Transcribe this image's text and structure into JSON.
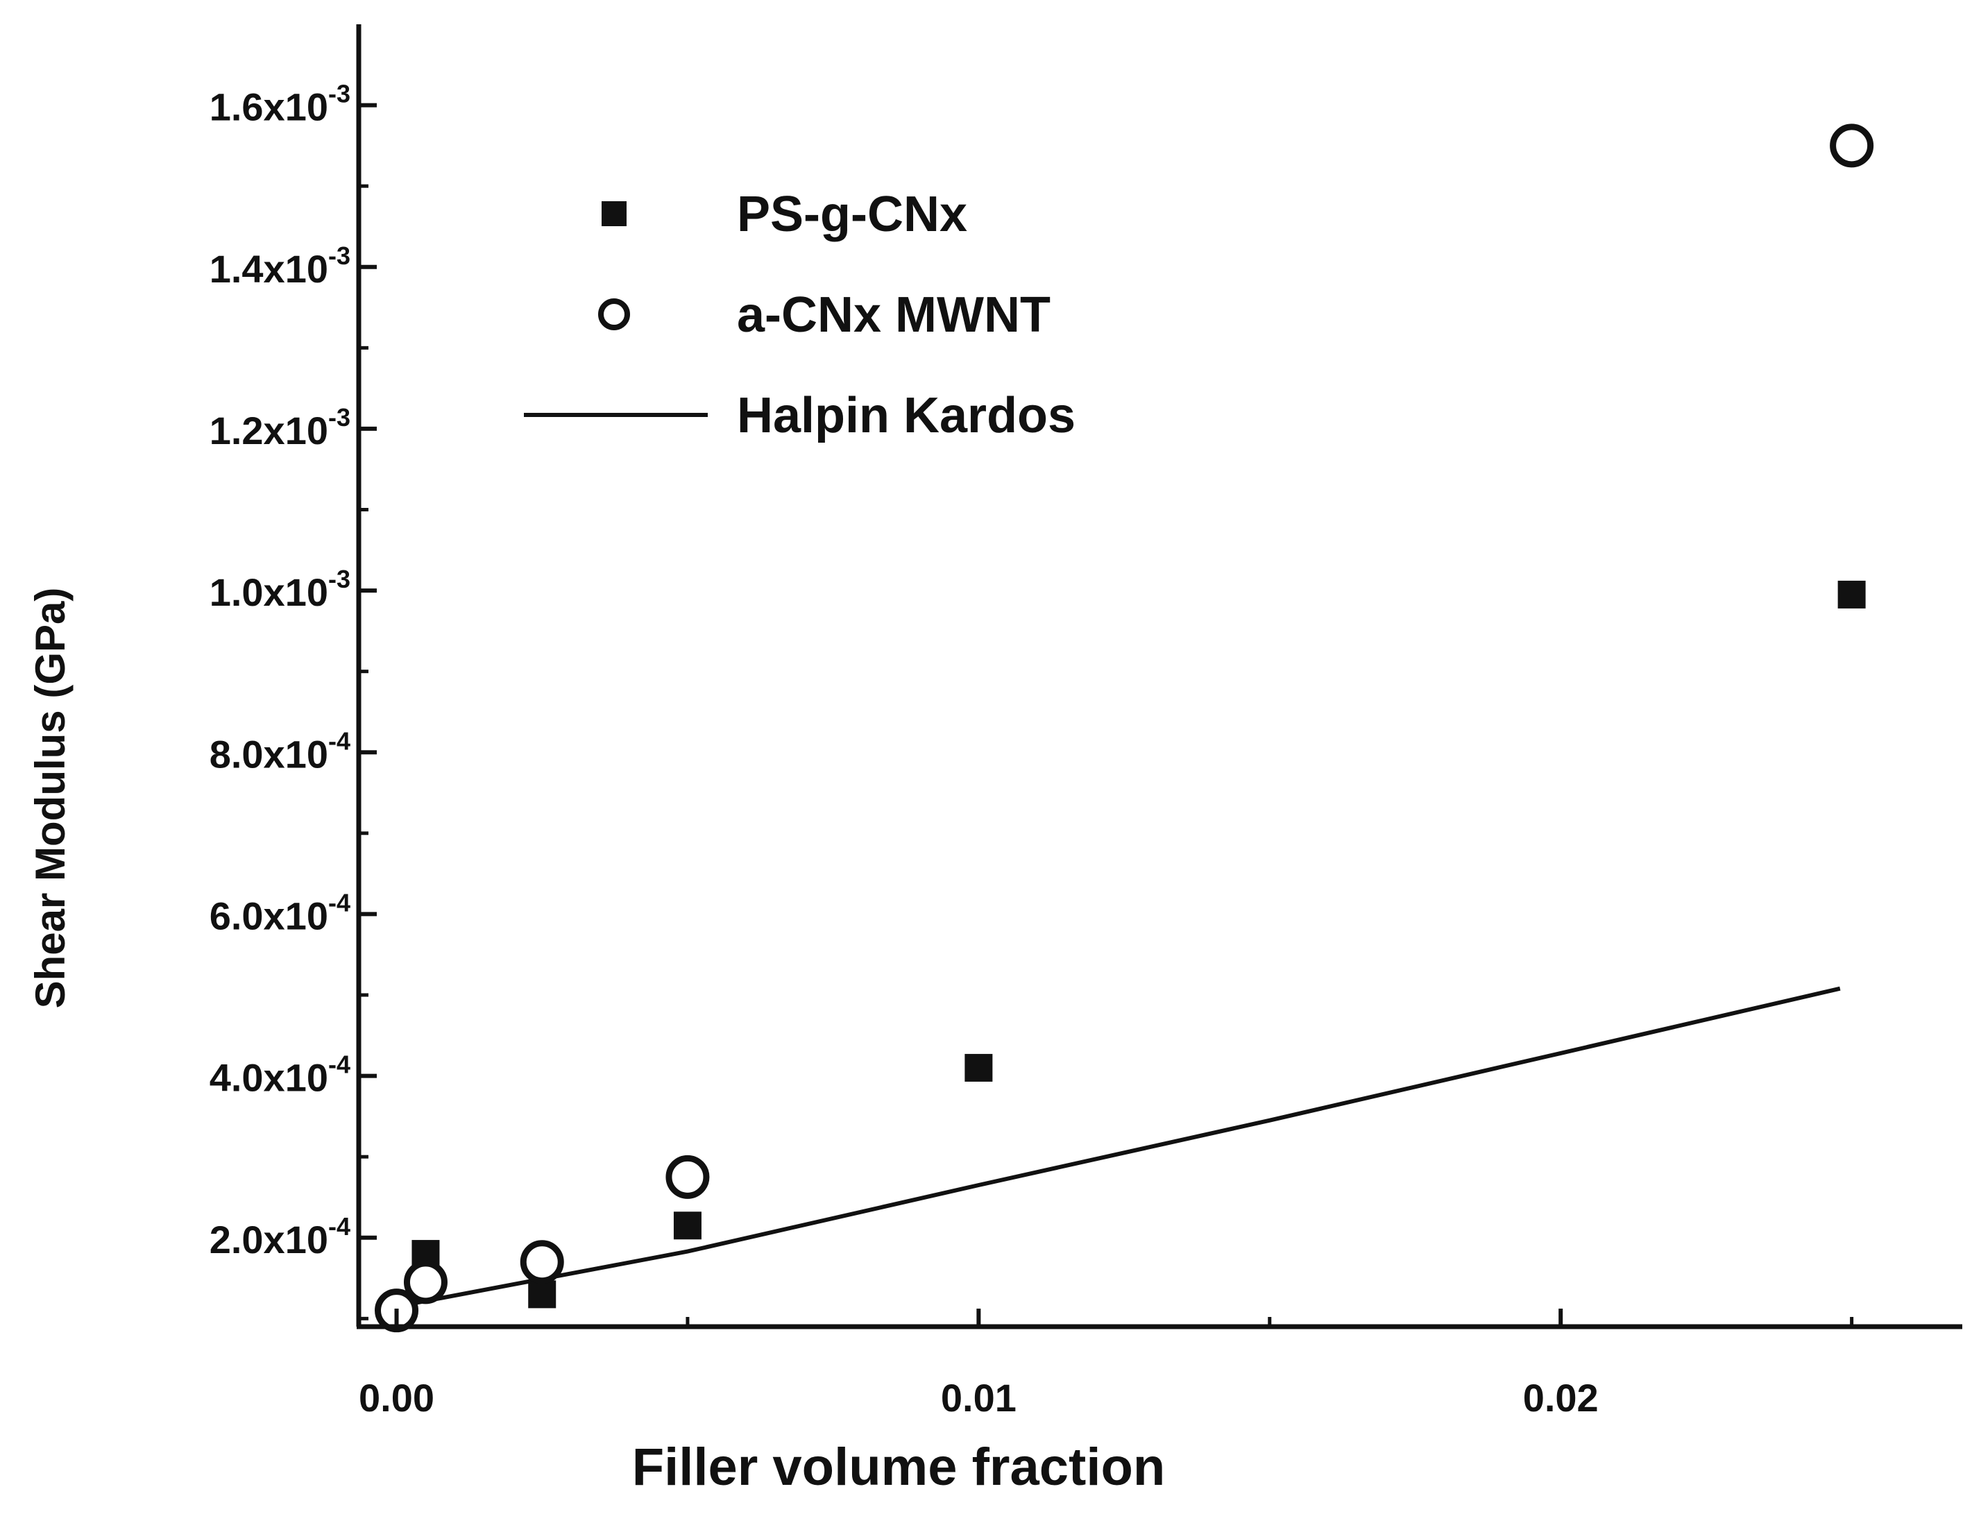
{
  "chart_data": {
    "type": "scatter",
    "xlabel": "Filler volume fraction",
    "ylabel": "Shear Modulus (GPa)",
    "xlim": [
      -0.00065,
      0.0269
    ],
    "ylim": [
      9e-05,
      0.0017
    ],
    "x_ticks": [
      {
        "value": 0.0,
        "label": "0.00"
      },
      {
        "value": 0.01,
        "label": "0.01"
      },
      {
        "value": 0.02,
        "label": "0.02"
      }
    ],
    "y_ticks": [
      {
        "value": 0.0002,
        "mantissa": "2.0x10",
        "exponent": "-4"
      },
      {
        "value": 0.0004,
        "mantissa": "4.0x10",
        "exponent": "-4"
      },
      {
        "value": 0.0006,
        "mantissa": "6.0x10",
        "exponent": "-4"
      },
      {
        "value": 0.0008,
        "mantissa": "8.0x10",
        "exponent": "-4"
      },
      {
        "value": 0.001,
        "mantissa": "1.0x10",
        "exponent": "-3"
      },
      {
        "value": 0.0012,
        "mantissa": "1.2x10",
        "exponent": "-3"
      },
      {
        "value": 0.0014,
        "mantissa": "1.4x10",
        "exponent": "-3"
      },
      {
        "value": 0.0016,
        "mantissa": "1.6x10",
        "exponent": "-3"
      }
    ],
    "legend_position": "top-left",
    "series": [
      {
        "name": "PS-g-CNx",
        "marker": "filled-square",
        "color": "#111111",
        "points": [
          {
            "x": 0.0,
            "y": 0.00011
          },
          {
            "x": 0.0005,
            "y": 0.00018
          },
          {
            "x": 0.0025,
            "y": 0.00013
          },
          {
            "x": 0.005,
            "y": 0.000215
          },
          {
            "x": 0.01,
            "y": 0.00041
          },
          {
            "x": 0.025,
            "y": 0.000995
          }
        ]
      },
      {
        "name": "a-CNx MWNT",
        "marker": "open-circle",
        "color": "#111111",
        "points": [
          {
            "x": 0.0,
            "y": 0.00011
          },
          {
            "x": 0.0005,
            "y": 0.000145
          },
          {
            "x": 0.0025,
            "y": 0.00017
          },
          {
            "x": 0.005,
            "y": 0.000275
          },
          {
            "x": 0.025,
            "y": 0.00155
          }
        ]
      },
      {
        "name": "Halpin Kardos",
        "marker": "line",
        "color": "#111111",
        "points": [
          {
            "x": 0.0,
            "y": 0.000115
          },
          {
            "x": 0.005,
            "y": 0.000183
          },
          {
            "x": 0.01,
            "y": 0.000265
          },
          {
            "x": 0.015,
            "y": 0.000345
          },
          {
            "x": 0.02,
            "y": 0.000428
          },
          {
            "x": 0.0248,
            "y": 0.000508
          }
        ]
      }
    ]
  }
}
